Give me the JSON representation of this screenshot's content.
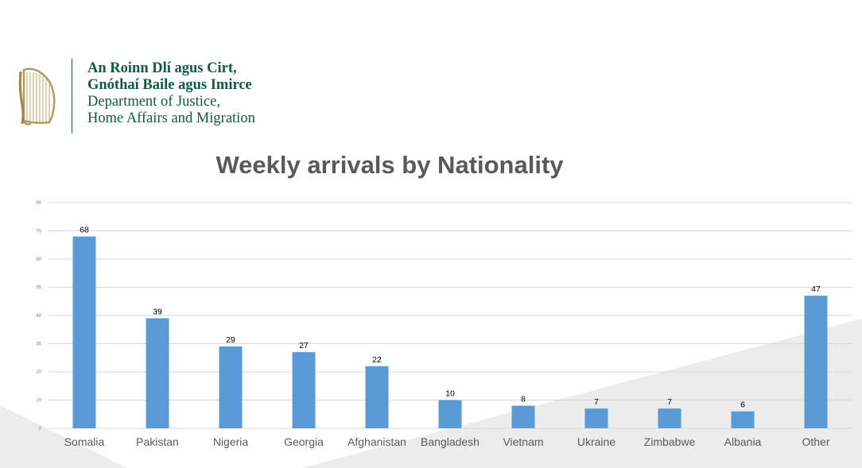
{
  "logo": {
    "irish_line1": "An Roinn Dlí agus Cirt,",
    "irish_line2": "Gnóthaí Baile agus Imirce",
    "english_line1": "Department of Justice,",
    "english_line2": "Home Affairs and Migration",
    "emblem": "harp-icon",
    "color": "#0f5a45"
  },
  "chart_data": {
    "type": "bar",
    "title": "Weekly arrivals by Nationality",
    "xlabel": "",
    "ylabel": "",
    "ylim": [
      0,
      80
    ],
    "yticks": [
      "0",
      "10",
      "20",
      "30",
      "40",
      "50",
      "60",
      "70",
      "80"
    ],
    "grid": true,
    "legend": "none",
    "bar_color": "#5b9bd5",
    "categories": [
      "Somalia",
      "Pakistan",
      "Nigeria",
      "Georgia",
      "Afghanistan",
      "Bangladesh",
      "Vietnam",
      "Ukraine",
      "Zimbabwe",
      "Albania",
      "Other"
    ],
    "values": [
      68,
      39,
      29,
      27,
      22,
      10,
      8,
      7,
      7,
      6,
      47
    ]
  }
}
